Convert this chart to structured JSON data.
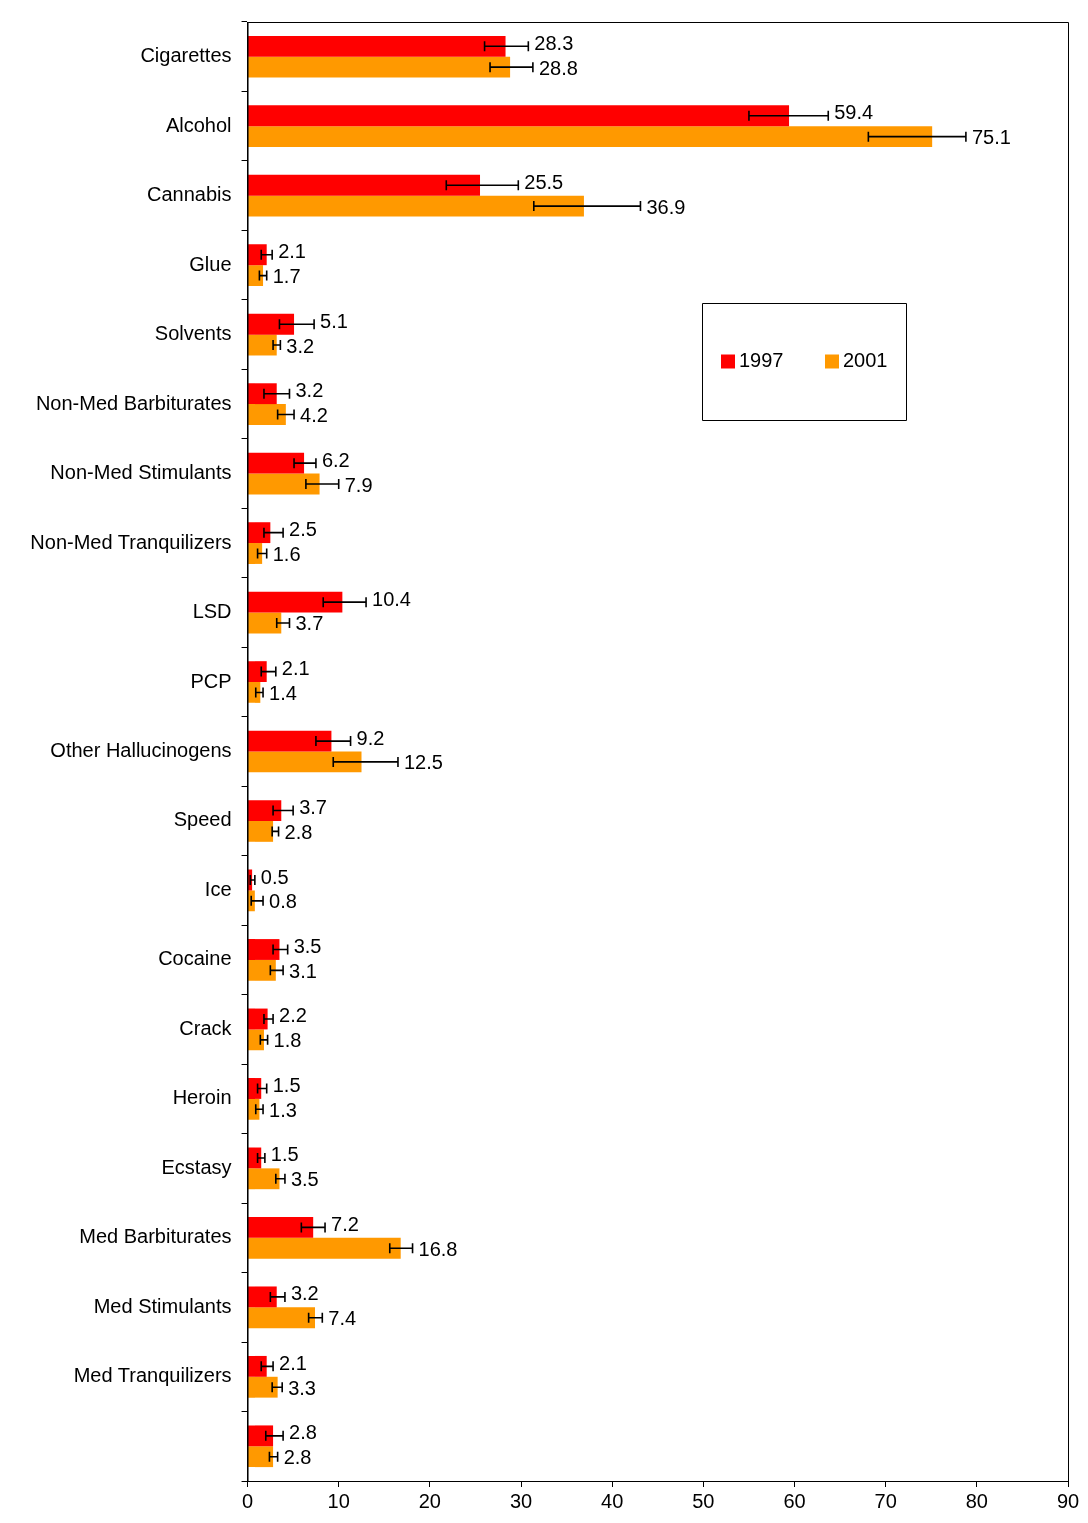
{
  "chart_data": {
    "type": "bar",
    "orientation": "horizontal",
    "categories": [
      "Cigarettes",
      "Alcohol",
      "Cannabis",
      "Glue",
      "Solvents",
      "Non-Med Barbiturates",
      "Non-Med Stimulants",
      "Non-Med Tranquilizers",
      "LSD",
      "PCP",
      "Other Hallucinogens",
      "Speed",
      "Ice",
      "Cocaine",
      "Crack",
      "Heroin",
      "Ecstasy",
      "Med Barbiturates",
      "Med Stimulants",
      "Med Tranquilizers",
      null
    ],
    "series": [
      {
        "name": "1997",
        "color": "#ff0000",
        "values": [
          28.3,
          59.4,
          25.5,
          2.1,
          5.1,
          3.2,
          6.2,
          2.5,
          10.4,
          2.1,
          9.2,
          3.7,
          0.5,
          3.5,
          2.2,
          1.5,
          1.5,
          7.2,
          3.2,
          2.1,
          2.8
        ],
        "errors": [
          [
            26.0,
            30.8
          ],
          [
            55.0,
            63.7
          ],
          [
            21.8,
            29.7
          ],
          [
            1.5,
            2.7
          ],
          [
            3.5,
            7.3
          ],
          [
            1.8,
            4.6
          ],
          [
            5.1,
            7.5
          ],
          [
            1.8,
            3.9
          ],
          [
            8.3,
            13.0
          ],
          [
            1.5,
            3.1
          ],
          [
            7.5,
            11.3
          ],
          [
            2.8,
            5.0
          ],
          [
            0.3,
            0.8
          ],
          [
            2.8,
            4.4
          ],
          [
            1.8,
            2.8
          ],
          [
            1.1,
            2.1
          ],
          [
            1.1,
            1.9
          ],
          [
            5.9,
            8.5
          ],
          [
            2.5,
            4.1
          ],
          [
            1.5,
            2.8
          ],
          [
            2.0,
            3.9
          ]
        ]
      },
      {
        "name": "2001",
        "color": "#ff9900",
        "values": [
          28.8,
          75.1,
          36.9,
          1.7,
          3.2,
          4.2,
          7.9,
          1.6,
          3.7,
          1.4,
          12.5,
          2.8,
          0.8,
          3.1,
          1.8,
          1.3,
          3.5,
          16.8,
          7.4,
          3.3,
          2.8
        ],
        "errors": [
          [
            26.6,
            31.3
          ],
          [
            68.1,
            78.8
          ],
          [
            31.4,
            43.1
          ],
          [
            1.3,
            2.1
          ],
          [
            2.8,
            3.6
          ],
          [
            3.3,
            5.1
          ],
          [
            6.4,
            10.0
          ],
          [
            1.1,
            2.1
          ],
          [
            3.2,
            4.6
          ],
          [
            0.9,
            1.7
          ],
          [
            9.4,
            16.5
          ],
          [
            2.7,
            3.4
          ],
          [
            0.4,
            1.7
          ],
          [
            2.5,
            3.9
          ],
          [
            1.4,
            2.2
          ],
          [
            0.9,
            1.7
          ],
          [
            3.1,
            4.1
          ],
          [
            15.6,
            18.1
          ],
          [
            6.7,
            8.2
          ],
          [
            2.7,
            3.8
          ],
          [
            2.4,
            3.3
          ]
        ]
      }
    ],
    "xlim": [
      0,
      90
    ],
    "xticks": [
      0,
      10,
      20,
      30,
      40,
      50,
      60,
      70,
      80,
      90
    ],
    "data_labels": true,
    "grid": false,
    "legend": "right"
  }
}
